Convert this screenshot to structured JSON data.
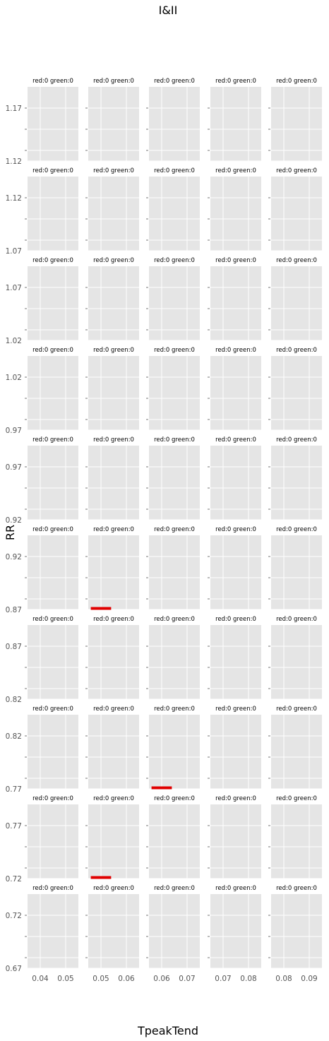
{
  "chart_data": {
    "type": "bar",
    "title": "I&II",
    "xlabel": "TpeakTend",
    "ylabel": "RR",
    "grid": true,
    "colors": {
      "panel_bg": "#e5e5e5",
      "grid": "#ffffff",
      "red": "#e00000",
      "tick": "#555555"
    },
    "columns": [
      {
        "xlim": [
          0.035,
          0.055
        ],
        "xticks": [
          "0.04",
          "0.05"
        ],
        "xtick_values": [
          0.04,
          0.05
        ]
      },
      {
        "xlim": [
          0.045,
          0.065
        ],
        "xticks": [
          "0.05",
          "0.06"
        ],
        "xtick_values": [
          0.05,
          0.06
        ]
      },
      {
        "xlim": [
          0.055,
          0.075
        ],
        "xticks": [
          "0.06",
          "0.07"
        ],
        "xtick_values": [
          0.06,
          0.07
        ]
      },
      {
        "xlim": [
          0.065,
          0.085
        ],
        "xticks": [
          "0.07",
          "0.08"
        ],
        "xtick_values": [
          0.07,
          0.08
        ]
      },
      {
        "xlim": [
          0.075,
          0.095
        ],
        "xticks": [
          "0.08",
          "0.09"
        ],
        "xtick_values": [
          0.08,
          0.09
        ]
      }
    ],
    "rows": [
      {
        "ylim": [
          1.12,
          1.19
        ],
        "yticks": [
          "1.17",
          "1.12"
        ]
      },
      {
        "ylim": [
          1.07,
          1.14
        ],
        "yticks": [
          "1.12",
          "1.07"
        ]
      },
      {
        "ylim": [
          1.02,
          1.09
        ],
        "yticks": [
          "1.07",
          "1.02"
        ]
      },
      {
        "ylim": [
          0.97,
          1.04
        ],
        "yticks": [
          "1.02",
          "0.97"
        ]
      },
      {
        "ylim": [
          0.92,
          0.99
        ],
        "yticks": [
          "0.97",
          "0.92"
        ]
      },
      {
        "ylim": [
          0.87,
          0.94
        ],
        "yticks": [
          "0.92",
          "0.87"
        ]
      },
      {
        "ylim": [
          0.82,
          0.89
        ],
        "yticks": [
          "0.87",
          "0.82"
        ]
      },
      {
        "ylim": [
          0.77,
          0.84
        ],
        "yticks": [
          "0.82",
          "0.77"
        ]
      },
      {
        "ylim": [
          0.72,
          0.79
        ],
        "yticks": [
          "0.77",
          "0.72"
        ]
      },
      {
        "ylim": [
          0.67,
          0.74
        ],
        "yticks": [
          "0.72",
          "0.67"
        ]
      }
    ],
    "panel_label": "red:0 green:0",
    "red_segments": [
      {
        "row": 5,
        "col": 1,
        "x": [
          0.046,
          0.054
        ],
        "y": 0.871
      },
      {
        "row": 7,
        "col": 2,
        "x": [
          0.056,
          0.064
        ],
        "y": 0.771
      },
      {
        "row": 8,
        "col": 1,
        "x": [
          0.046,
          0.054
        ],
        "y": 0.721
      }
    ]
  }
}
